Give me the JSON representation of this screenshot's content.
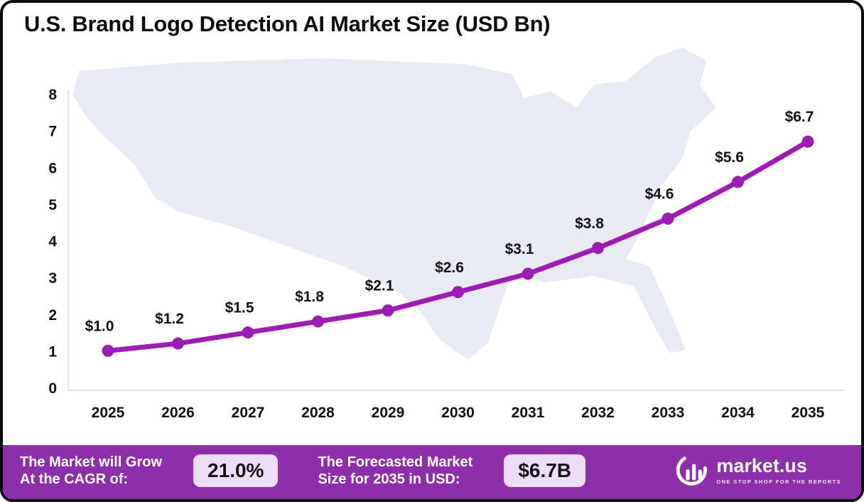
{
  "title": "U.S. Brand Logo Detection AI Market Size (USD Bn)",
  "chart_data": {
    "type": "line",
    "title": "U.S. Brand Logo Detection AI Market Size (USD Bn)",
    "x": [
      "2025",
      "2026",
      "2027",
      "2028",
      "2029",
      "2030",
      "2031",
      "2032",
      "2033",
      "2034",
      "2035"
    ],
    "values": [
      1.0,
      1.2,
      1.5,
      1.8,
      2.1,
      2.6,
      3.1,
      3.8,
      4.6,
      5.6,
      6.7
    ],
    "point_labels": [
      "$1.0",
      "$1.2",
      "$1.5",
      "$1.8",
      "$2.1",
      "$2.6",
      "$3.1",
      "$3.8",
      "$4.6",
      "$5.6",
      "$6.7"
    ],
    "xlabel": "",
    "ylabel": "",
    "ylim": [
      0,
      8
    ],
    "yticks": [
      0,
      1,
      2,
      3,
      4,
      5,
      6,
      7,
      8
    ],
    "grid": false,
    "legend_position": "none",
    "line_color": "#9B1DB4",
    "marker_color": "#9B1DB4",
    "label_color": "#111111"
  },
  "footer": {
    "cagr_label": "The Market will Grow\nAt the CAGR of:",
    "cagr_value": "21.0%",
    "forecast_label": "The Forecasted Market\nSize for 2035 in USD:",
    "forecast_value": "$6.7B",
    "brand": "market.us",
    "tagline": "ONE STOP SHOP FOR THE REPORTS",
    "bar_color": "#8C2FA8"
  },
  "colors": {
    "map_fill": "#EAEAF5",
    "axis_line": "#E3E3EE"
  }
}
